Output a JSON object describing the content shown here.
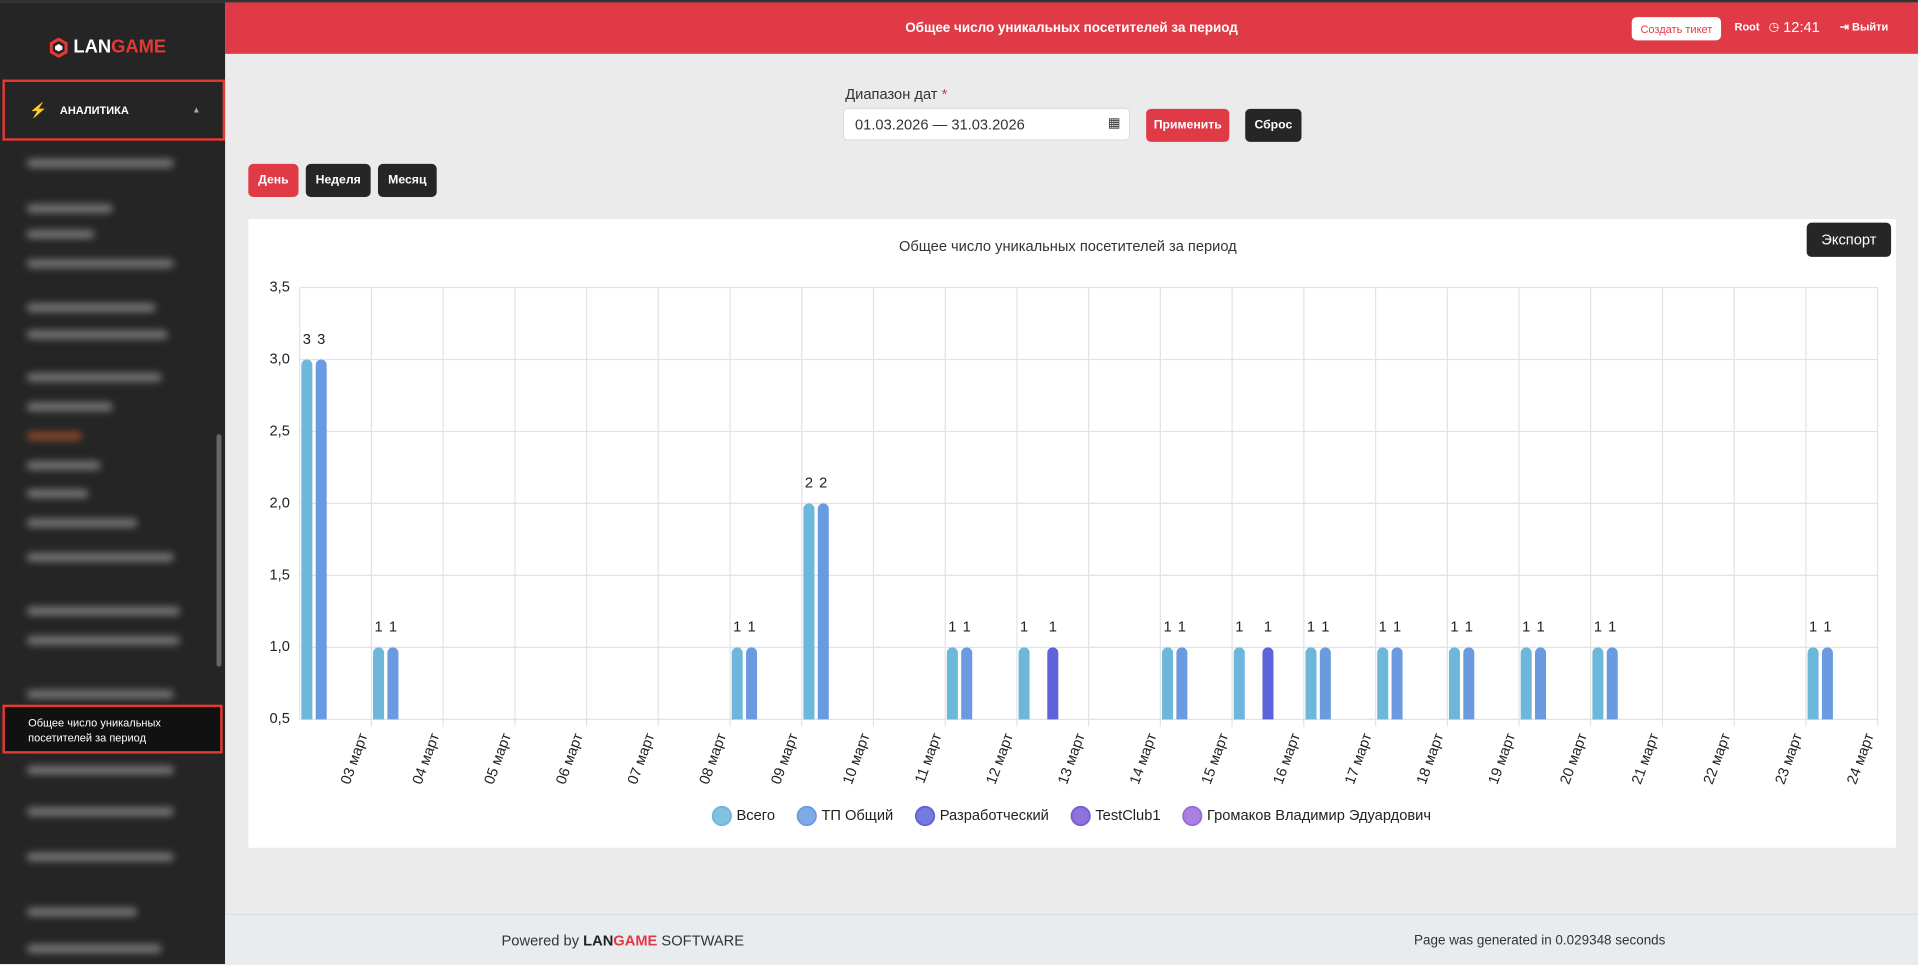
{
  "sidebar": {
    "logo_parts": [
      "LAN",
      "GAME"
    ],
    "section": "АНАЛИТИКА",
    "active_item": "Общее число уникальных посетителей за период"
  },
  "header": {
    "title": "Общее число уникальных посетителей за период",
    "ticket_button": "Создать тикет",
    "user": "Root",
    "time": "12:41",
    "logout": "Выйти"
  },
  "filter": {
    "label": "Диапазон дат",
    "required_mark": "*",
    "date_range": "01.03.2026 — 31.03.2026",
    "apply": "Применить",
    "reset": "Сброс"
  },
  "period_buttons": [
    "День",
    "Неделя",
    "Месяц"
  ],
  "export_button": "Экспорт",
  "chart_data": {
    "type": "bar",
    "title": "Общее число уникальных посетителей за период",
    "categories": [
      "03 март",
      "04 март",
      "05 март",
      "06 март",
      "07 март",
      "08 март",
      "09 март",
      "10 март",
      "11 март",
      "12 март",
      "13 март",
      "14 март",
      "15 март",
      "16 март",
      "17 март",
      "18 март",
      "19 март",
      "20 март",
      "21 март",
      "22 март",
      "23 март",
      "24 март"
    ],
    "series": [
      {
        "name": "Всего",
        "color": "#6cb7da",
        "values": [
          3,
          1,
          null,
          null,
          null,
          null,
          1,
          2,
          null,
          1,
          1,
          null,
          1,
          1,
          1,
          1,
          1,
          1,
          1,
          null,
          null,
          1
        ]
      },
      {
        "name": "ТП Общий",
        "color": "#6a9be0",
        "values": [
          3,
          1,
          null,
          null,
          null,
          null,
          1,
          2,
          null,
          1,
          null,
          null,
          1,
          null,
          1,
          1,
          1,
          1,
          1,
          null,
          null,
          1
        ]
      },
      {
        "name": "Разработческий",
        "color": "#5d63d8",
        "values": [
          null,
          null,
          null,
          null,
          null,
          null,
          null,
          null,
          null,
          null,
          1,
          null,
          null,
          1,
          null,
          null,
          null,
          null,
          null,
          null,
          null,
          null
        ]
      },
      {
        "name": "TestClub1",
        "color": "#7a5bd6",
        "values": [
          null,
          null,
          null,
          null,
          null,
          null,
          null,
          null,
          null,
          null,
          null,
          null,
          null,
          null,
          null,
          null,
          null,
          null,
          null,
          null,
          null,
          null
        ]
      },
      {
        "name": "Громаков Владимир Эдуардович",
        "color": "#9b6ada",
        "values": [
          null,
          null,
          null,
          null,
          null,
          null,
          null,
          null,
          null,
          null,
          null,
          null,
          null,
          null,
          null,
          null,
          null,
          null,
          null,
          null,
          null,
          null
        ]
      }
    ],
    "ylim": [
      0.5,
      3.5
    ],
    "yticks": [
      {
        "value": 0.5,
        "label": "0,5"
      },
      {
        "value": 1,
        "label": "1,0"
      },
      {
        "value": 1.5,
        "label": "1,5"
      },
      {
        "value": 2,
        "label": "2,0"
      },
      {
        "value": 2.5,
        "label": "2,5"
      },
      {
        "value": 3,
        "label": "3,0"
      },
      {
        "value": 3.5,
        "label": "3,5"
      }
    ],
    "grid": true,
    "legend": "bottom",
    "data_labels": true
  },
  "footer": {
    "powered_by": "Powered by",
    "brand_parts": [
      "LAN",
      "GAME"
    ],
    "software": "SOFTWARE",
    "generated": "Page was generated in 0.029348 seconds"
  }
}
